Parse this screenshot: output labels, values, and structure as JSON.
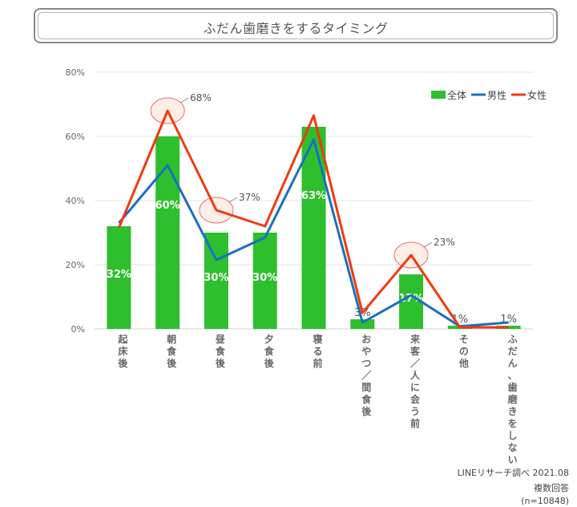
{
  "title": "ふだん歯磨きをするタイミング",
  "source": "LINEリサーチ調べ 2021.08",
  "note1": "複数回答",
  "note2": "(n=10848)",
  "colors": {
    "all": "#2dbf2d",
    "male": "#1a6fc0",
    "female": "#f03a10",
    "grid": "#e6e6e6",
    "highlight_fill": "#fdeee6",
    "highlight_stroke": "#e07070"
  },
  "chart_data": {
    "type": "bar",
    "categories": [
      "起床後",
      "朝食後",
      "昼食後",
      "夕食後",
      "寝る前",
      "おやつ／間食後",
      "来客／人に会う前",
      "その他",
      "ふだん、歯磨きをしない"
    ],
    "y_ticks": [
      "0%",
      "20%",
      "40%",
      "60%",
      "80%"
    ],
    "ylim": [
      0,
      80
    ],
    "legend_position": "top-right",
    "series": [
      {
        "name": "全体",
        "type": "bar",
        "values": [
          32,
          60,
          30,
          30,
          63,
          3,
          17,
          1,
          1
        ],
        "labels": [
          "32%",
          "60%",
          "30%",
          "30%",
          "63%",
          "3%",
          "17%",
          "1%",
          "1%"
        ]
      },
      {
        "name": "男性",
        "type": "line",
        "values": [
          33,
          51,
          21.5,
          28.5,
          59,
          2,
          10.5,
          0.8,
          2
        ]
      },
      {
        "name": "女性",
        "type": "line",
        "values": [
          31.5,
          68,
          37,
          32,
          66.5,
          5,
          23,
          0.5,
          0.5
        ]
      }
    ],
    "highlights": [
      {
        "index": 1,
        "label": "68%"
      },
      {
        "index": 2,
        "label": "37%"
      },
      {
        "index": 6,
        "label": "23%"
      }
    ]
  }
}
